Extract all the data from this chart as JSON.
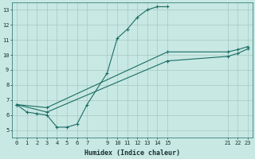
{
  "xlabel": "Humidex (Indice chaleur)",
  "bg_color": "#c8e8e4",
  "grid_color": "#a8c8c4",
  "line_color": "#1a6e64",
  "ylim": [
    4.5,
    13.5
  ],
  "xlim": [
    -0.5,
    23.5
  ],
  "yticks": [
    5,
    6,
    7,
    8,
    9,
    10,
    11,
    12,
    13
  ],
  "xticks": [
    0,
    1,
    2,
    3,
    4,
    5,
    6,
    7,
    9,
    10,
    11,
    12,
    13,
    14,
    15,
    21,
    22,
    23
  ],
  "line1_x": [
    0,
    1,
    2,
    3,
    4,
    5,
    6,
    7,
    9,
    10,
    11,
    12,
    13,
    14,
    15
  ],
  "line1_y": [
    6.7,
    6.2,
    6.1,
    6.0,
    5.2,
    5.2,
    5.4,
    6.7,
    8.8,
    11.1,
    11.7,
    12.5,
    13.0,
    13.2,
    13.2
  ],
  "line2_x": [
    0,
    3,
    15,
    21,
    22,
    23
  ],
  "line2_y": [
    6.7,
    6.5,
    10.2,
    10.2,
    10.35,
    10.55
  ],
  "line3_x": [
    0,
    3,
    15,
    21,
    22,
    23
  ],
  "line3_y": [
    6.7,
    6.2,
    9.6,
    9.9,
    10.1,
    10.4
  ]
}
